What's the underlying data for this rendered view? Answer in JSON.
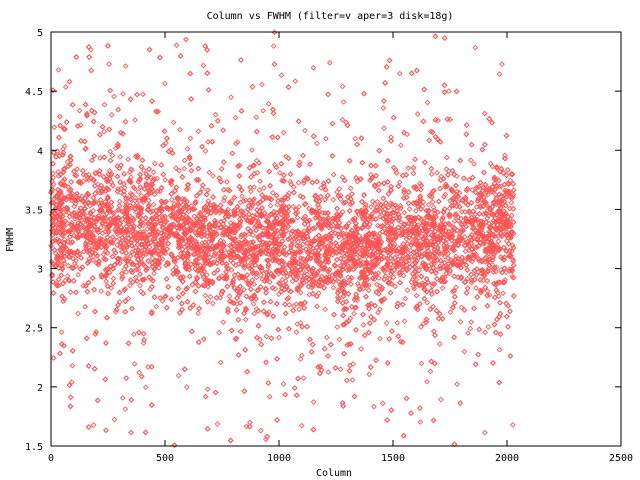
{
  "chart_data": {
    "type": "scatter",
    "title": "Column vs FWHM (filter=v aper=3 disk=18g)",
    "xlabel": "Column",
    "ylabel": "FWHM",
    "xlim": [
      0,
      2500
    ],
    "ylim": [
      1.5,
      5
    ],
    "x_ticks": [
      "0",
      "500",
      "1000",
      "1500",
      "2000",
      "2500"
    ],
    "y_ticks": [
      "1.5",
      "2",
      "2.5",
      "3",
      "3.5",
      "4",
      "4.5",
      "5"
    ],
    "marker": "diamond",
    "grid": false,
    "legend": "none",
    "series": [
      {
        "color": "#ff5555",
        "x_range": [
          0,
          2030
        ],
        "profile_x": [
          0,
          250,
          500,
          750,
          1000,
          1250,
          1500,
          1750,
          2030
        ],
        "profile_center_y": [
          3.42,
          3.38,
          3.3,
          3.22,
          3.17,
          3.16,
          3.2,
          3.27,
          3.36
        ],
        "profile_core_halfwidth": [
          0.5,
          0.48,
          0.46,
          0.45,
          0.44,
          0.44,
          0.45,
          0.46,
          0.48
        ],
        "y_range": [
          1.5,
          5
        ]
      }
    ]
  }
}
